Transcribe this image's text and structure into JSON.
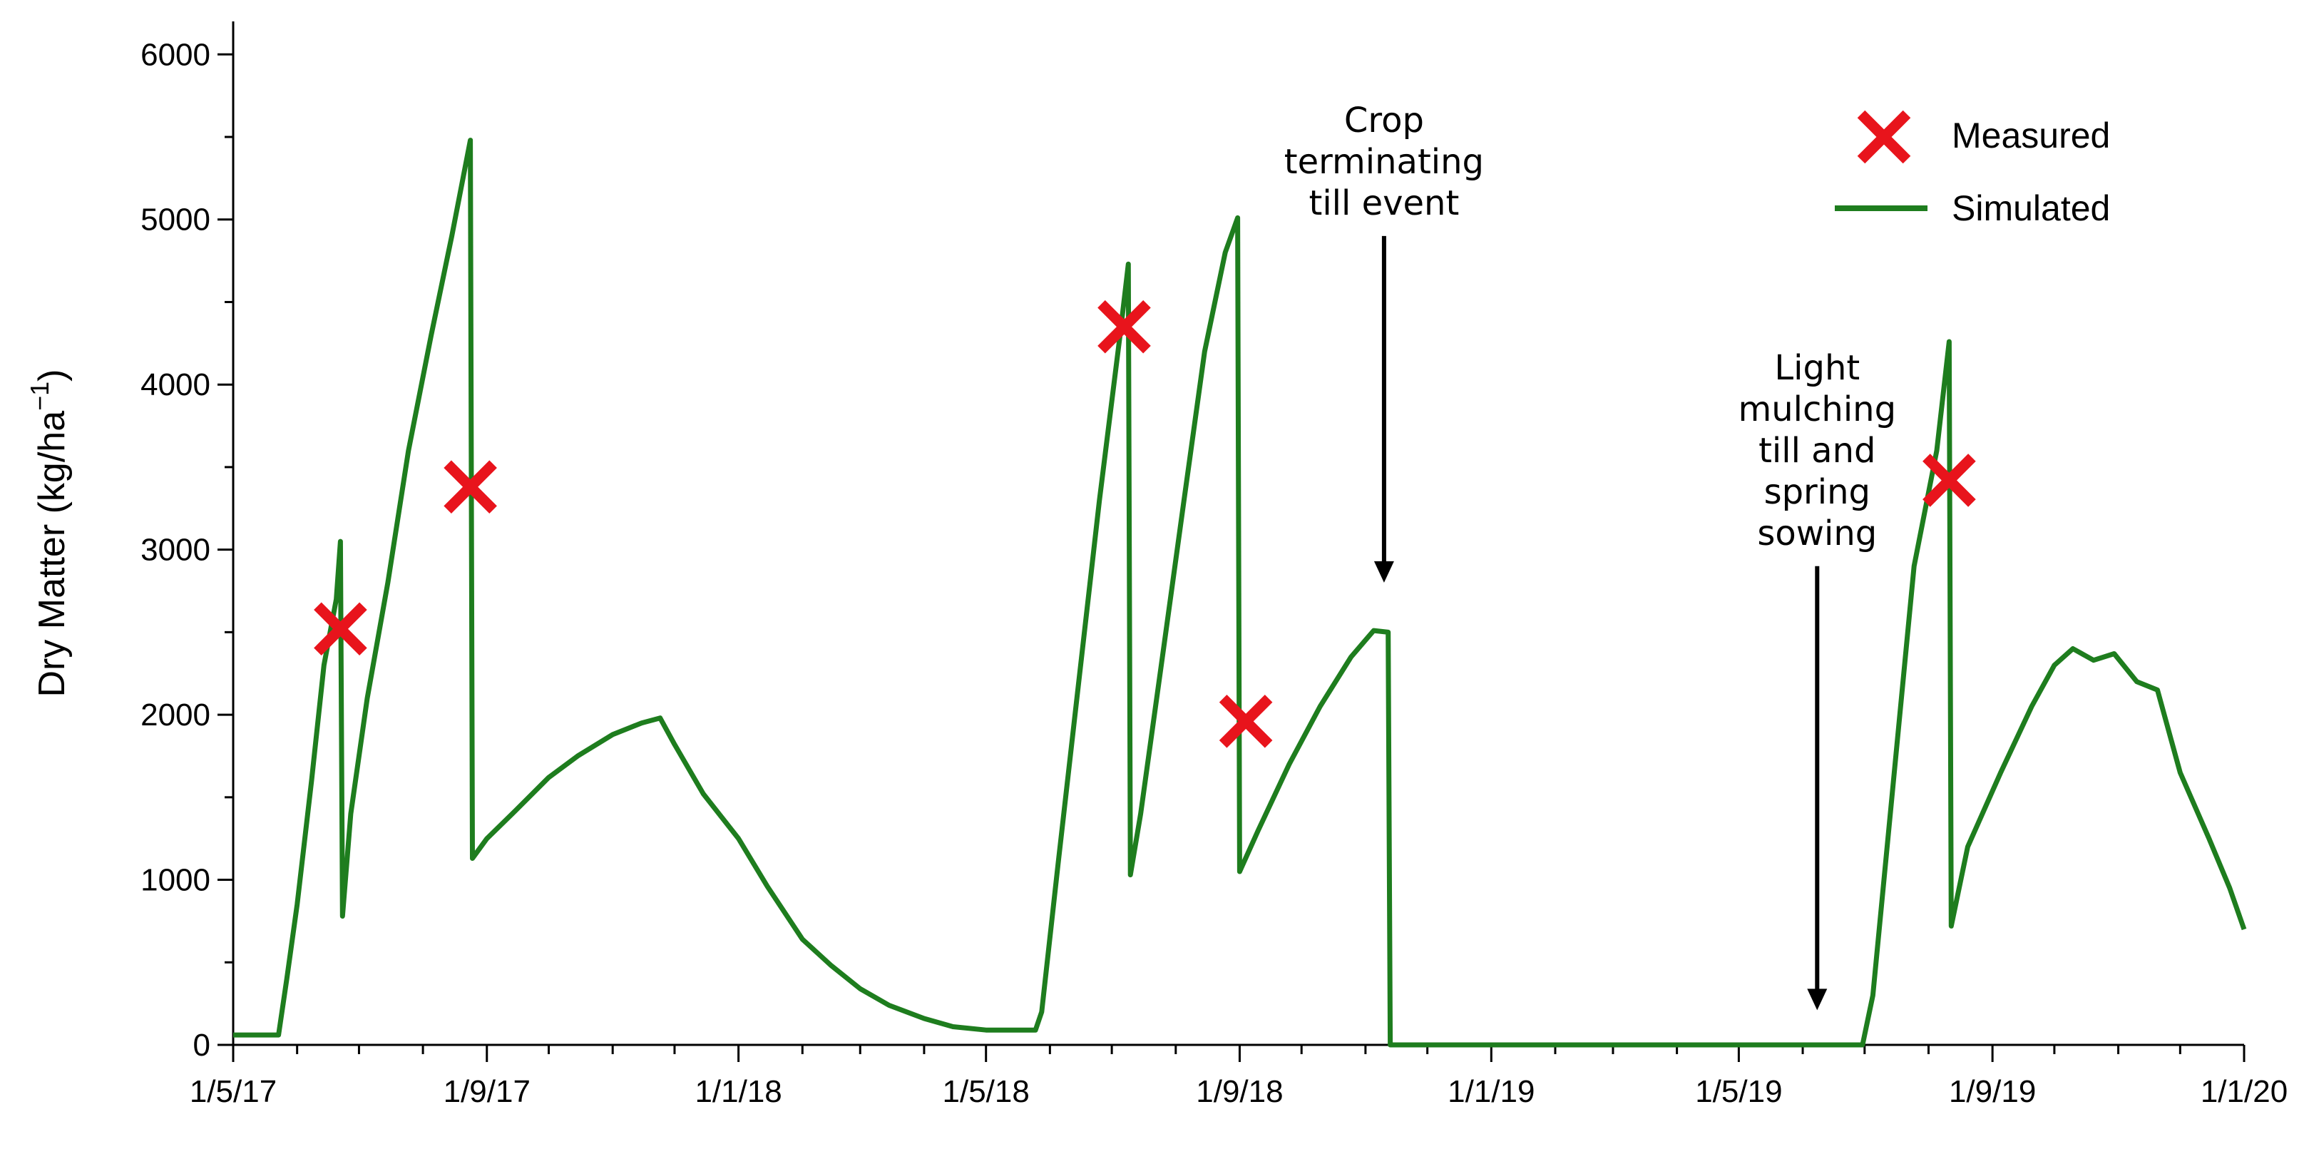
{
  "chart_data": {
    "type": "line",
    "title": "",
    "xlabel": "",
    "ylabel": "Dry Matter (kg/ha",
    "ylabel_sup": "−1",
    "ylabel_close": ")",
    "x_ticks": [
      "1/5/17",
      "1/9/17",
      "1/1/18",
      "1/5/18",
      "1/9/18",
      "1/1/19",
      "1/5/19",
      "1/9/19",
      "1/1/20"
    ],
    "xlim": [
      "2017-05-01",
      "2020-01-01"
    ],
    "y_ticks": [
      "0",
      "1000",
      "2000",
      "3000",
      "4000",
      "5000",
      "6000"
    ],
    "ylim": [
      0,
      6200
    ],
    "grid": false,
    "legend_position": "top-right",
    "legend": [
      {
        "label": "Measured",
        "marker": "x",
        "color": "#e8141c"
      },
      {
        "label": "Simulated",
        "marker": "line",
        "color": "#1e7d1e"
      }
    ],
    "series": [
      {
        "name": "Simulated",
        "color": "#1e7d1e",
        "points": [
          [
            "2017-05-01",
            60
          ],
          [
            "2017-05-20",
            60
          ],
          [
            "2017-05-23",
            60
          ],
          [
            "2017-05-27",
            400
          ],
          [
            "2017-06-01",
            850
          ],
          [
            "2017-06-08",
            1600
          ],
          [
            "2017-06-14",
            2300
          ],
          [
            "2017-06-20",
            2700
          ],
          [
            "2017-06-22",
            3050
          ],
          [
            "2017-06-23",
            780
          ],
          [
            "2017-06-27",
            1400
          ],
          [
            "2017-07-05",
            2100
          ],
          [
            "2017-07-15",
            2800
          ],
          [
            "2017-07-25",
            3600
          ],
          [
            "2017-08-05",
            4300
          ],
          [
            "2017-08-15",
            4900
          ],
          [
            "2017-08-24",
            5480
          ],
          [
            "2017-08-25",
            1130
          ],
          [
            "2017-09-01",
            1250
          ],
          [
            "2017-09-15",
            1420
          ],
          [
            "2017-10-01",
            1620
          ],
          [
            "2017-10-15",
            1750
          ],
          [
            "2017-11-01",
            1880
          ],
          [
            "2017-11-15",
            1950
          ],
          [
            "2017-11-24",
            1980
          ],
          [
            "2017-12-01",
            1820
          ],
          [
            "2017-12-15",
            1520
          ],
          [
            "2018-01-01",
            1250
          ],
          [
            "2018-01-15",
            960
          ],
          [
            "2018-02-01",
            640
          ],
          [
            "2018-02-15",
            480
          ],
          [
            "2018-03-01",
            340
          ],
          [
            "2018-03-15",
            240
          ],
          [
            "2018-04-01",
            160
          ],
          [
            "2018-04-15",
            110
          ],
          [
            "2018-05-01",
            90
          ],
          [
            "2018-05-25",
            90
          ],
          [
            "2018-05-28",
            200
          ],
          [
            "2018-06-05",
            1100
          ],
          [
            "2018-06-15",
            2200
          ],
          [
            "2018-06-25",
            3300
          ],
          [
            "2018-07-05",
            4300
          ],
          [
            "2018-07-09",
            4730
          ],
          [
            "2018-07-10",
            1030
          ],
          [
            "2018-07-15",
            1400
          ],
          [
            "2018-07-25",
            2300
          ],
          [
            "2018-08-05",
            3300
          ],
          [
            "2018-08-15",
            4200
          ],
          [
            "2018-08-25",
            4800
          ],
          [
            "2018-08-31",
            5010
          ],
          [
            "2018-09-01",
            1050
          ],
          [
            "2018-09-10",
            1300
          ],
          [
            "2018-09-25",
            1700
          ],
          [
            "2018-10-10",
            2050
          ],
          [
            "2018-10-25",
            2350
          ],
          [
            "2018-11-05",
            2510
          ],
          [
            "2018-11-12",
            2500
          ],
          [
            "2018-11-13",
            0
          ],
          [
            "2019-01-01",
            0
          ],
          [
            "2019-05-01",
            0
          ],
          [
            "2019-06-30",
            0
          ],
          [
            "2019-07-05",
            300
          ],
          [
            "2019-07-15",
            1600
          ],
          [
            "2019-07-25",
            2900
          ],
          [
            "2019-08-05",
            3600
          ],
          [
            "2019-08-11",
            4260
          ],
          [
            "2019-08-12",
            720
          ],
          [
            "2019-08-20",
            1200
          ],
          [
            "2019-09-05",
            1650
          ],
          [
            "2019-09-20",
            2050
          ],
          [
            "2019-10-01",
            2300
          ],
          [
            "2019-10-10",
            2400
          ],
          [
            "2019-10-20",
            2330
          ],
          [
            "2019-10-30",
            2370
          ],
          [
            "2019-11-10",
            2200
          ],
          [
            "2019-11-20",
            2150
          ],
          [
            "2019-12-01",
            1650
          ],
          [
            "2019-12-15",
            1250
          ],
          [
            "2019-12-25",
            950
          ],
          [
            "2020-01-01",
            700
          ]
        ]
      },
      {
        "name": "Measured",
        "color": "#e8141c",
        "points": [
          [
            "2017-06-22",
            2520
          ],
          [
            "2017-08-24",
            3380
          ],
          [
            "2018-07-07",
            4350
          ],
          [
            "2018-09-04",
            1960
          ],
          [
            "2019-08-11",
            3420
          ]
        ]
      }
    ],
    "annotations": [
      {
        "lines": [
          "Crop",
          "terminating",
          "till event"
        ],
        "x": "2018-11-10",
        "y_from": 4900,
        "y_to": 2800
      },
      {
        "lines": [
          "Light",
          "mulching",
          "till and",
          "spring",
          "sowing"
        ],
        "x": "2019-06-08",
        "y_from": 2900,
        "y_to": 210
      }
    ]
  }
}
